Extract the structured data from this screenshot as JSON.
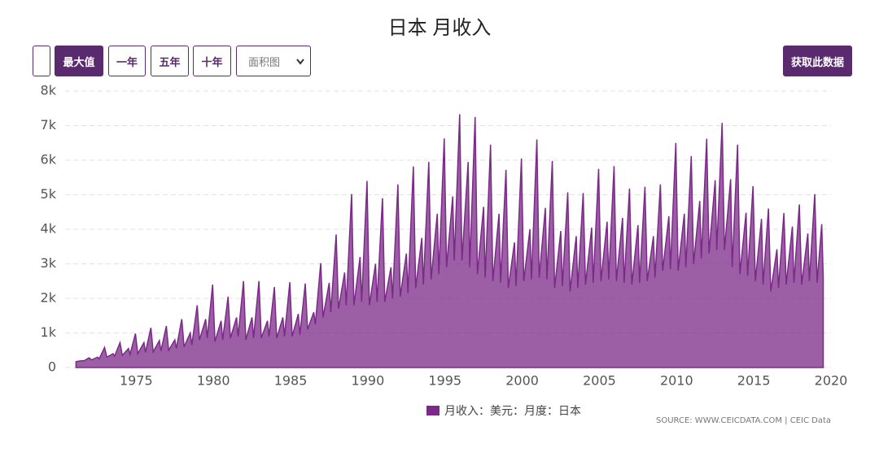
{
  "header": {
    "title": "日本 月收入"
  },
  "controls": {
    "range_buttons": [
      "最大值",
      "一年",
      "五年",
      "十年"
    ],
    "chart_type": "面积图",
    "download": "获取此数据"
  },
  "chart_data": {
    "type": "area",
    "source": "SOURCE: WWW.CEICDATA.COM | CEIC Data",
    "x": [
      1971.1,
      1971.5,
      1971.6,
      1971.95,
      1972.1,
      1972.5,
      1972.6,
      1972.95,
      1973.1,
      1973.5,
      1973.6,
      1973.95,
      1974.1,
      1974.5,
      1974.6,
      1974.95,
      1975.1,
      1975.5,
      1975.6,
      1975.95,
      1976.1,
      1976.5,
      1976.6,
      1976.95,
      1977.1,
      1977.5,
      1977.6,
      1977.95,
      1978.1,
      1978.5,
      1978.6,
      1978.95,
      1979.1,
      1979.5,
      1979.6,
      1979.95,
      1980.1,
      1980.5,
      1980.6,
      1980.95,
      1981.1,
      1981.5,
      1981.6,
      1981.95,
      1982.1,
      1982.5,
      1982.6,
      1982.95,
      1983.1,
      1983.5,
      1983.6,
      1983.95,
      1984.1,
      1984.5,
      1984.6,
      1984.95,
      1985.1,
      1985.5,
      1985.6,
      1985.95,
      1986.1,
      1986.5,
      1986.6,
      1986.95,
      1987.1,
      1987.5,
      1987.6,
      1987.95,
      1988.1,
      1988.5,
      1988.6,
      1988.95,
      1989.1,
      1989.5,
      1989.6,
      1989.95,
      1990.1,
      1990.5,
      1990.6,
      1990.95,
      1991.1,
      1991.5,
      1991.6,
      1991.95,
      1992.1,
      1992.5,
      1992.6,
      1992.95,
      1993.1,
      1993.5,
      1993.6,
      1993.95,
      1994.1,
      1994.5,
      1994.6,
      1994.95,
      1995.1,
      1995.5,
      1995.6,
      1995.95,
      1996.1,
      1996.5,
      1996.6,
      1996.95,
      1997.1,
      1997.5,
      1997.6,
      1997.95,
      1998.1,
      1998.5,
      1998.6,
      1998.95,
      1999.1,
      1999.5,
      1999.6,
      1999.95,
      2000.1,
      2000.5,
      2000.6,
      2000.95,
      2001.1,
      2001.5,
      2001.6,
      2001.95,
      2002.1,
      2002.5,
      2002.6,
      2002.95,
      2003.1,
      2003.5,
      2003.6,
      2003.95,
      2004.1,
      2004.5,
      2004.6,
      2004.95,
      2005.1,
      2005.5,
      2005.6,
      2005.95,
      2006.1,
      2006.5,
      2006.6,
      2006.95,
      2007.1,
      2007.5,
      2007.6,
      2007.95,
      2008.1,
      2008.5,
      2008.6,
      2008.95,
      2009.1,
      2009.5,
      2009.6,
      2009.95,
      2010.1,
      2010.5,
      2010.6,
      2010.95,
      2011.1,
      2011.5,
      2011.6,
      2011.95,
      2012.1,
      2012.5,
      2012.6,
      2012.95,
      2013.1,
      2013.5,
      2013.6,
      2013.95,
      2014.1,
      2014.5,
      2014.6,
      2014.95,
      2015.1,
      2015.5,
      2015.6,
      2015.95,
      2016.1,
      2016.5,
      2016.6,
      2016.95,
      2017.1,
      2017.5,
      2017.6,
      2017.95,
      2018.1,
      2018.5,
      2018.6,
      2018.95,
      2019.1,
      2019.4,
      2019.5
    ],
    "series": [
      {
        "name": "月收入：美元：月度：日本",
        "color": "#7b2a88",
        "values": [
          170,
          200,
          190,
          280,
          220,
          300,
          250,
          580,
          300,
          400,
          330,
          720,
          350,
          550,
          380,
          980,
          400,
          720,
          440,
          1150,
          450,
          780,
          480,
          1200,
          500,
          800,
          550,
          1400,
          600,
          1000,
          650,
          1800,
          800,
          1400,
          850,
          2400,
          750,
          1350,
          800,
          2050,
          850,
          1450,
          900,
          2500,
          800,
          1450,
          850,
          2500,
          850,
          1350,
          900,
          2330,
          850,
          1450,
          900,
          2470,
          900,
          1550,
          950,
          2430,
          1100,
          1600,
          1250,
          3020,
          1450,
          2450,
          1600,
          3850,
          1700,
          2750,
          1800,
          5020,
          1800,
          3200,
          1900,
          5400,
          1800,
          3000,
          1900,
          4900,
          1900,
          2900,
          2000,
          5300,
          2050,
          3300,
          2150,
          5820,
          2300,
          3750,
          2400,
          5950,
          2550,
          4450,
          2700,
          6630,
          2900,
          4950,
          3100,
          7330,
          3100,
          5950,
          2900,
          7250,
          2700,
          4650,
          2600,
          6450,
          2500,
          4450,
          2450,
          5720,
          2300,
          3620,
          2350,
          6050,
          2500,
          4000,
          2550,
          6600,
          2600,
          4620,
          2550,
          5980,
          2300,
          3950,
          2350,
          5070,
          2200,
          3800,
          2300,
          5050,
          2400,
          4050,
          2450,
          5750,
          2500,
          4220,
          2550,
          5830,
          2500,
          4330,
          2450,
          5180,
          2400,
          4120,
          2450,
          5230,
          2500,
          3800,
          2600,
          5300,
          2800,
          4380,
          2850,
          6500,
          2800,
          4450,
          2900,
          6120,
          3000,
          4820,
          3150,
          6620,
          3300,
          5420,
          3400,
          7080,
          3400,
          5450,
          2900,
          6450,
          2700,
          4480,
          2650,
          5250,
          2500,
          4300,
          2400,
          4600,
          2200,
          3420,
          2300,
          4470,
          2400,
          4080,
          2450,
          4720,
          2400,
          3880,
          2500,
          5020,
          2450,
          4150,
          2600
        ]
      }
    ],
    "xlim": [
      1970.5,
      2020
    ],
    "xticks": [
      1975,
      1980,
      1985,
      1990,
      1995,
      2000,
      2005,
      2010,
      2015,
      2020
    ],
    "ylim": [
      0,
      8000
    ],
    "yticks": [
      0,
      {
        "value": 1000,
        "label": "1k"
      },
      {
        "value": 2000,
        "label": "2k"
      },
      {
        "value": 3000,
        "label": "3k"
      },
      {
        "value": 4000,
        "label": "4k"
      },
      {
        "value": 5000,
        "label": "5k"
      },
      {
        "value": 6000,
        "label": "6k"
      },
      {
        "value": 7000,
        "label": "7k"
      },
      {
        "value": 8000,
        "label": "8k"
      }
    ],
    "grid": true
  }
}
